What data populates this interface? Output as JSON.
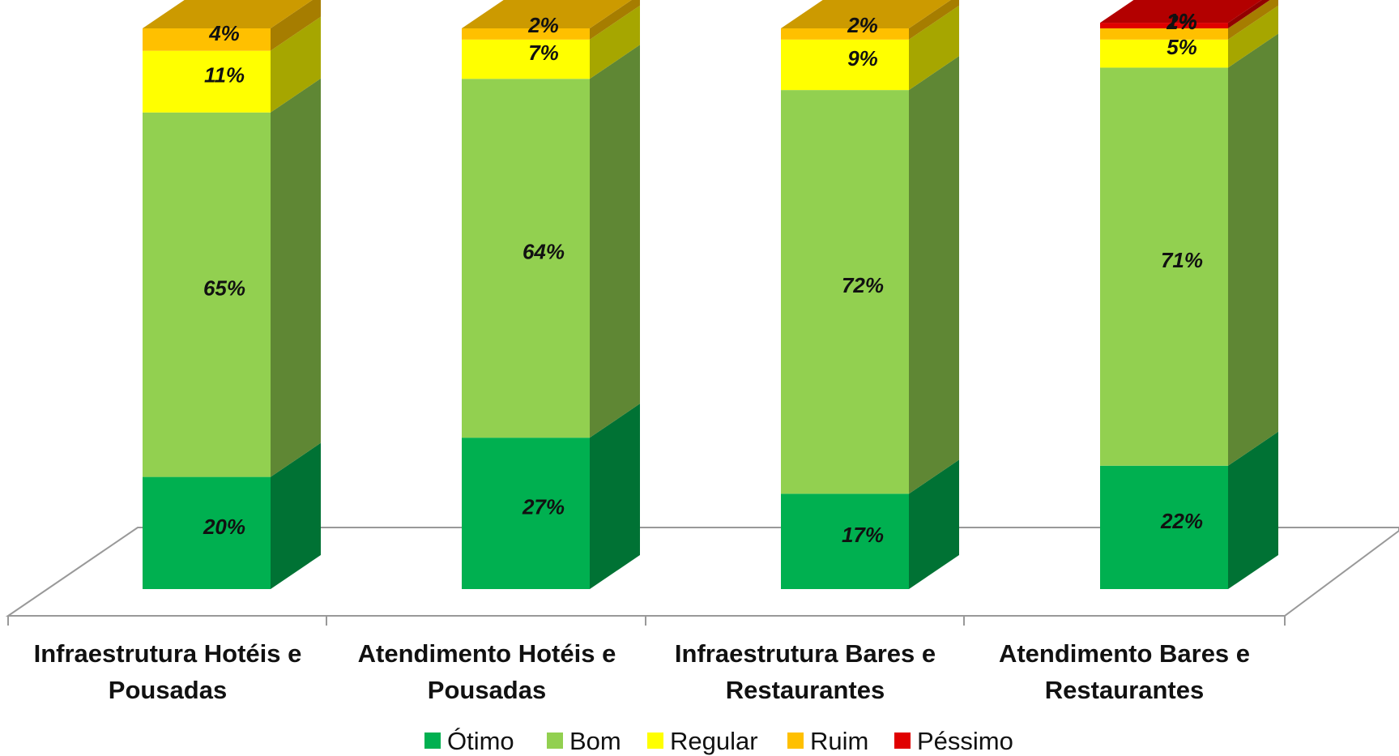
{
  "chart_data": {
    "type": "bar",
    "stacked": true,
    "three_d": true,
    "categories": [
      [
        "Infraestrutura Hotéis e",
        "Pousadas"
      ],
      [
        "Atendimento Hotéis e",
        "Pousadas"
      ],
      [
        "Infraestrutura Bares e",
        "Restaurantes"
      ],
      [
        "Atendimento Bares e",
        "Restaurantes"
      ]
    ],
    "series": [
      {
        "name": "Ótimo",
        "color": "#00B050",
        "values": [
          20,
          27,
          17,
          22
        ]
      },
      {
        "name": "Bom",
        "color": "#92D050",
        "values": [
          65,
          64,
          72,
          71
        ]
      },
      {
        "name": "Regular",
        "color": "#FFFF00",
        "values": [
          11,
          7,
          9,
          5
        ]
      },
      {
        "name": "Ruim",
        "color": "#FFC000",
        "values": [
          4,
          2,
          2,
          2
        ]
      },
      {
        "name": "Péssimo",
        "color": "#E00000",
        "values": [
          0,
          0,
          0,
          1
        ]
      }
    ],
    "data_labels": [
      [
        "20%",
        "65%",
        "11%",
        "4%",
        ""
      ],
      [
        "27%",
        "64%",
        "7%",
        "2%",
        ""
      ],
      [
        "17%",
        "72%",
        "9%",
        "2%",
        ""
      ],
      [
        "22%",
        "71%",
        "5%",
        "2%",
        "1%"
      ]
    ],
    "ylim": [
      0,
      100
    ],
    "legend_position": "bottom",
    "grid": false
  }
}
